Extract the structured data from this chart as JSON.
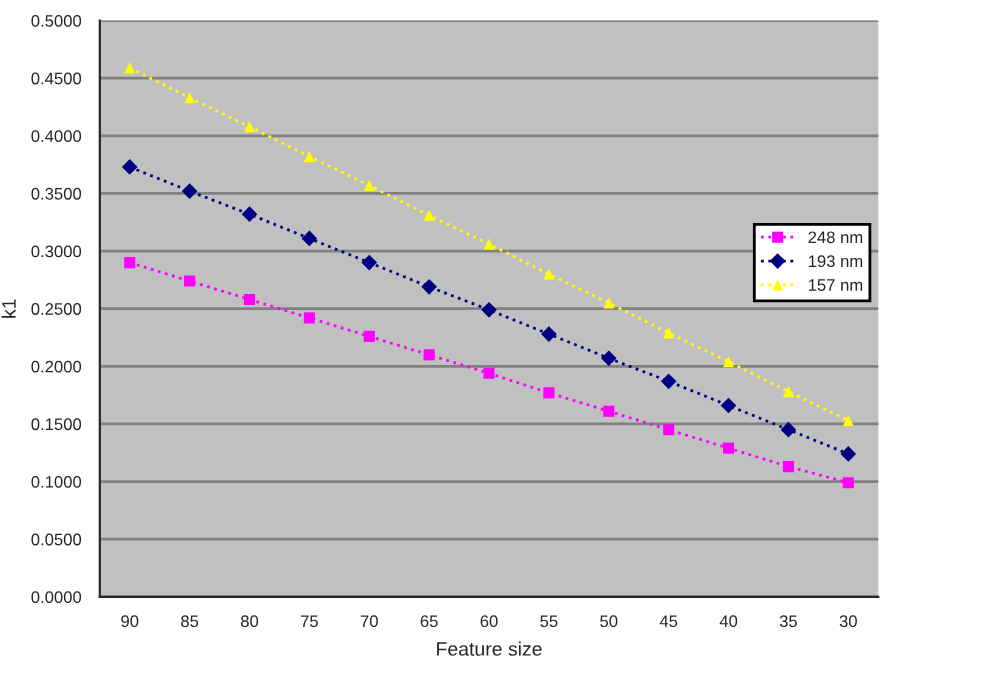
{
  "chart_data": {
    "type": "line",
    "xlabel": "Feature size",
    "ylabel": "k1",
    "categories": [
      "90",
      "85",
      "80",
      "75",
      "70",
      "65",
      "60",
      "55",
      "50",
      "45",
      "40",
      "35",
      "30"
    ],
    "series": [
      {
        "name": "248 nm",
        "color": "#ff00ff",
        "marker": "square",
        "values": [
          0.29,
          0.274,
          0.258,
          0.242,
          0.226,
          0.21,
          0.194,
          0.177,
          0.161,
          0.145,
          0.129,
          0.113,
          0.099
        ]
      },
      {
        "name": "193 nm",
        "color": "#000080",
        "marker": "diamond",
        "values": [
          0.373,
          0.352,
          0.332,
          0.311,
          0.29,
          0.269,
          0.249,
          0.228,
          0.207,
          0.187,
          0.166,
          0.145,
          0.124
        ]
      },
      {
        "name": "157 nm",
        "color": "#ffff00",
        "marker": "triangle",
        "values": [
          0.459,
          0.433,
          0.408,
          0.382,
          0.357,
          0.331,
          0.306,
          0.28,
          0.255,
          0.229,
          0.204,
          0.178,
          0.153
        ]
      }
    ],
    "ylim": [
      0,
      0.5
    ],
    "yticks": [
      {
        "value": 0,
        "label": "0.0000"
      },
      {
        "value": 0.05,
        "label": "0.0500"
      },
      {
        "value": 0.1,
        "label": "0.1000"
      },
      {
        "value": 0.15,
        "label": "0.1500"
      },
      {
        "value": 0.2,
        "label": "0.2000"
      },
      {
        "value": 0.25,
        "label": "0.2500"
      },
      {
        "value": 0.3,
        "label": "0.3000"
      },
      {
        "value": 0.35,
        "label": "0.3500"
      },
      {
        "value": 0.4,
        "label": "0.4000"
      },
      {
        "value": 0.45,
        "label": "0.4500"
      },
      {
        "value": 0.5,
        "label": "0.5000"
      }
    ],
    "grid": "y",
    "legend": "right",
    "line_style": "dotted"
  }
}
